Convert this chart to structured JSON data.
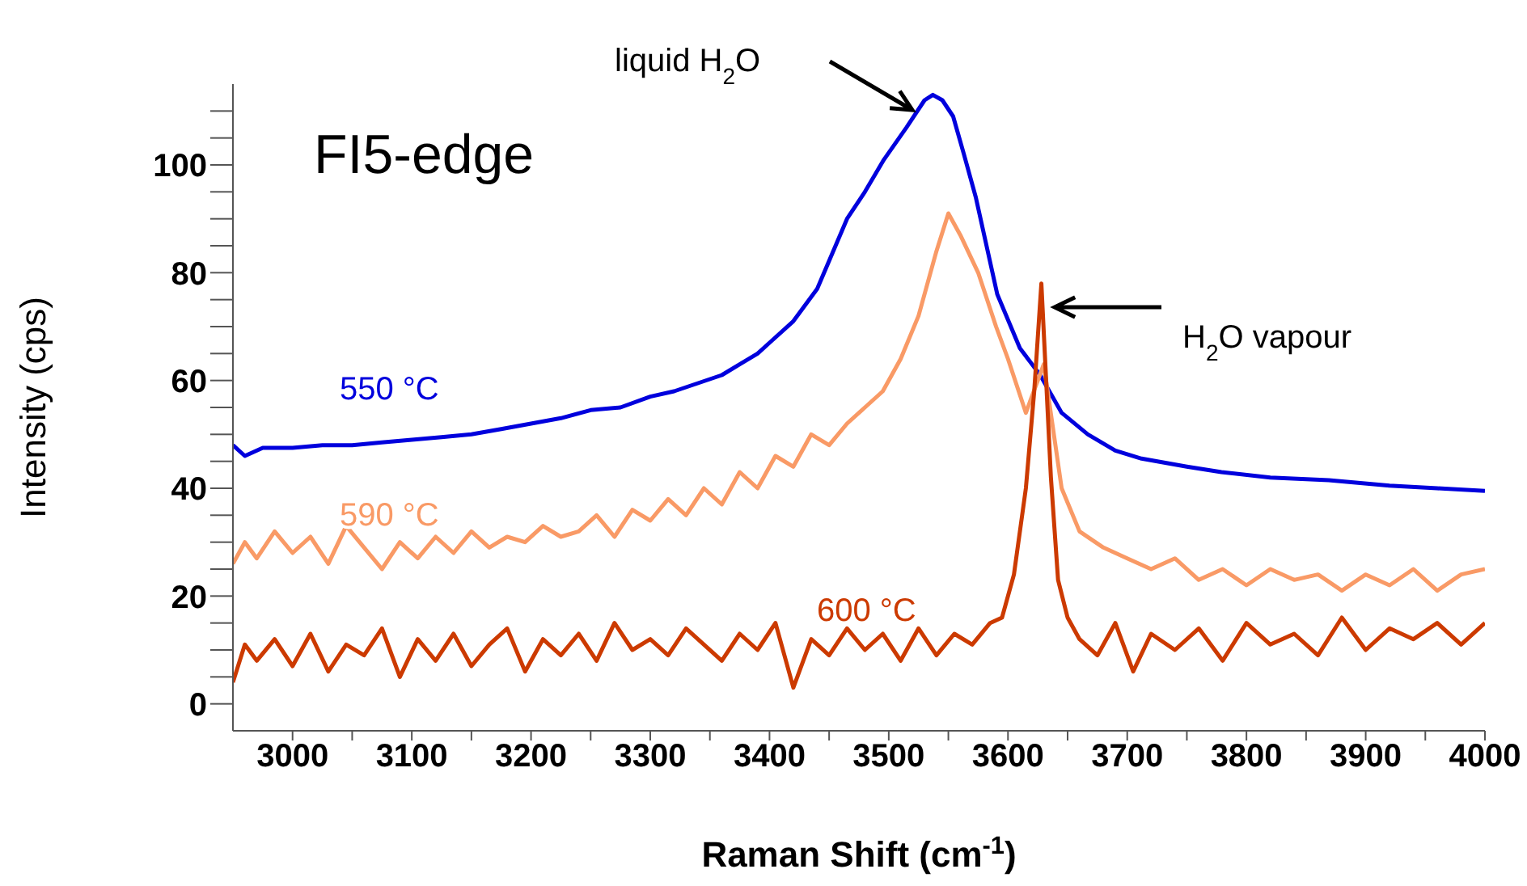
{
  "chart_data": {
    "type": "line",
    "title": "FI5-edge",
    "xlabel": "Raman Shift (cm$^{-1}$)",
    "ylabel": "Intensity (cps)",
    "xlim": [
      2950,
      4000
    ],
    "ylim": [
      -5,
      115
    ],
    "xticks": [
      3000,
      {
        "value": 3050,
        "label": null
      },
      3100,
      {
        "value": 3150,
        "label": null
      },
      3200,
      {
        "value": 3250,
        "label": null
      },
      3300,
      {
        "value": 3350,
        "label": null
      },
      3400,
      {
        "value": 3450,
        "label": null
      },
      3500,
      {
        "value": 3550,
        "label": null
      },
      3600,
      {
        "value": 3650,
        "label": null
      },
      3700,
      {
        "value": 3750,
        "label": null
      },
      3800,
      {
        "value": 3850,
        "label": null
      },
      3900,
      {
        "value": 3950,
        "label": null
      },
      4000
    ],
    "yticks": [
      0,
      {
        "value": 5,
        "label": null
      },
      {
        "value": 10,
        "label": null
      },
      {
        "value": 15,
        "label": null
      },
      20,
      {
        "value": 25,
        "label": null
      },
      {
        "value": 30,
        "label": null
      },
      {
        "value": 35,
        "label": null
      },
      40,
      {
        "value": 45,
        "label": null
      },
      {
        "value": 50,
        "label": null
      },
      {
        "value": 55,
        "label": null
      },
      60,
      {
        "value": 65,
        "label": null
      },
      {
        "value": 70,
        "label": null
      },
      {
        "value": 75,
        "label": null
      },
      80,
      {
        "value": 85,
        "label": null
      },
      {
        "value": 90,
        "label": null
      },
      {
        "value": 95,
        "label": null
      },
      100,
      {
        "value": 105,
        "label": null
      },
      {
        "value": 110,
        "label": null
      }
    ],
    "grid": false,
    "legend": false,
    "marker": "none",
    "line_style": "solid",
    "annotations": [
      "liquid H$_{2}$O",
      "H$_{2}$O vapour"
    ],
    "series": [
      {
        "name": "550 °C",
        "color": "#0000dd",
        "x": [
          2950,
          2960,
          2975,
          3000,
          3025,
          3050,
          3075,
          3100,
          3125,
          3150,
          3175,
          3200,
          3225,
          3250,
          3275,
          3300,
          3320,
          3340,
          3360,
          3375,
          3390,
          3400,
          3420,
          3440,
          3465,
          3480,
          3496,
          3515,
          3530,
          3537,
          3545,
          3554,
          3563,
          3573,
          3582,
          3591,
          3610,
          3627,
          3645,
          3667,
          3690,
          3712,
          3750,
          3779,
          3820,
          3869,
          3920,
          3960,
          4000
        ],
        "values": [
          48,
          46,
          47.5,
          47.5,
          48,
          48,
          48.5,
          49,
          49.5,
          50,
          51,
          52,
          53,
          54.5,
          55,
          57,
          58,
          59.5,
          61,
          63,
          65,
          67,
          71,
          77,
          90,
          95,
          101,
          107,
          112,
          113,
          112,
          109,
          102,
          94,
          85,
          76,
          66,
          61,
          54,
          50,
          47,
          45.5,
          44,
          43,
          42,
          41.5,
          40.5,
          40,
          39.5
        ]
      },
      {
        "name": "590 °C",
        "color": "#f99a66",
        "x": [
          2950,
          2960,
          2970,
          2985,
          3000,
          3015,
          3030,
          3045,
          3060,
          3075,
          3090,
          3105,
          3120,
          3135,
          3150,
          3165,
          3180,
          3195,
          3210,
          3225,
          3240,
          3255,
          3270,
          3285,
          3300,
          3315,
          3330,
          3345,
          3360,
          3375,
          3390,
          3405,
          3420,
          3435,
          3450,
          3465,
          3480,
          3495,
          3510,
          3525,
          3540,
          3550,
          3560,
          3575,
          3590,
          3600,
          3615,
          3630,
          3645,
          3660,
          3680,
          3700,
          3720,
          3740,
          3760,
          3780,
          3800,
          3820,
          3840,
          3860,
          3880,
          3900,
          3920,
          3940,
          3960,
          3980,
          4000
        ],
        "values": [
          26,
          30,
          27,
          32,
          28,
          31,
          26,
          33,
          29,
          25,
          30,
          27,
          31,
          28,
          32,
          29,
          31,
          30,
          33,
          31,
          32,
          35,
          31,
          36,
          34,
          38,
          35,
          40,
          37,
          43,
          40,
          46,
          44,
          50,
          48,
          52,
          55,
          58,
          64,
          72,
          84,
          91,
          87,
          80,
          70,
          64,
          54,
          63,
          40,
          32,
          29,
          27,
          25,
          27,
          23,
          25,
          22,
          25,
          23,
          24,
          21,
          24,
          22,
          25,
          21,
          24,
          25
        ]
      },
      {
        "name": "600 °C",
        "color": "#cc3a00",
        "x": [
          2950,
          2960,
          2970,
          2985,
          3000,
          3015,
          3030,
          3045,
          3060,
          3075,
          3090,
          3105,
          3120,
          3135,
          3150,
          3165,
          3180,
          3195,
          3210,
          3225,
          3240,
          3255,
          3270,
          3285,
          3300,
          3315,
          3330,
          3345,
          3360,
          3375,
          3390,
          3405,
          3420,
          3435,
          3450,
          3465,
          3480,
          3495,
          3510,
          3525,
          3540,
          3555,
          3570,
          3585,
          3595,
          3605,
          3615,
          3622,
          3628,
          3632,
          3636,
          3642,
          3650,
          3660,
          3675,
          3690,
          3705,
          3720,
          3740,
          3760,
          3780,
          3800,
          3820,
          3840,
          3860,
          3880,
          3900,
          3920,
          3940,
          3960,
          3980,
          4000
        ],
        "values": [
          4,
          11,
          8,
          12,
          7,
          13,
          6,
          11,
          9,
          14,
          5,
          12,
          8,
          13,
          7,
          11,
          14,
          6,
          12,
          9,
          13,
          8,
          15,
          10,
          12,
          9,
          14,
          11,
          8,
          13,
          10,
          15,
          3,
          12,
          9,
          14,
          10,
          13,
          8,
          14,
          9,
          13,
          11,
          15,
          16,
          24,
          40,
          58,
          78,
          60,
          42,
          23,
          16,
          12,
          9,
          15,
          6,
          13,
          10,
          14,
          8,
          15,
          11,
          13,
          9,
          16,
          10,
          14,
          12,
          15,
          11,
          15
        ]
      }
    ]
  }
}
